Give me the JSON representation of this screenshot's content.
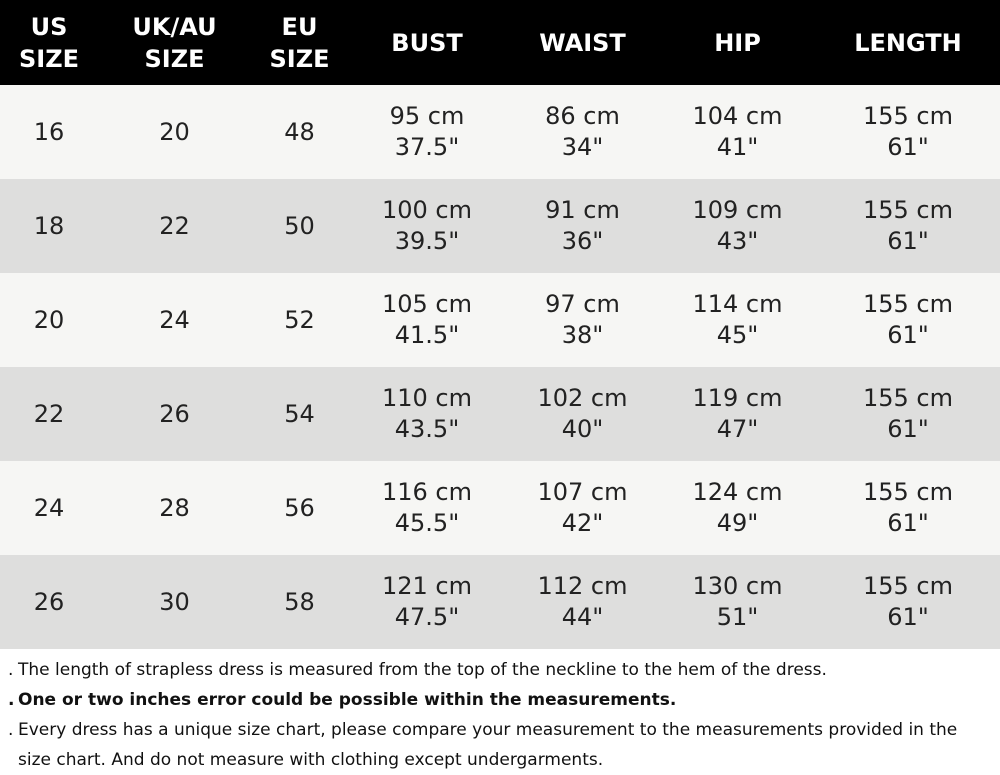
{
  "table": {
    "headers": [
      [
        "US",
        "SIZE"
      ],
      [
        "UK/AU",
        "SIZE"
      ],
      [
        "EU",
        "SIZE"
      ],
      [
        "BUST"
      ],
      [
        "WAIST"
      ],
      [
        "HIP"
      ],
      [
        "LENGTH"
      ]
    ],
    "rows": [
      [
        [
          "16"
        ],
        [
          "20"
        ],
        [
          "48"
        ],
        [
          "95 cm",
          "37.5\""
        ],
        [
          "86 cm",
          "34\""
        ],
        [
          "104 cm",
          "41\""
        ],
        [
          "155 cm",
          "61\""
        ]
      ],
      [
        [
          "18"
        ],
        [
          "22"
        ],
        [
          "50"
        ],
        [
          "100 cm",
          "39.5\""
        ],
        [
          "91 cm",
          "36\""
        ],
        [
          "109 cm",
          "43\""
        ],
        [
          "155 cm",
          "61\""
        ]
      ],
      [
        [
          "20"
        ],
        [
          "24"
        ],
        [
          "52"
        ],
        [
          "105 cm",
          "41.5\""
        ],
        [
          "97 cm",
          "38\""
        ],
        [
          "114 cm",
          "45\""
        ],
        [
          "155 cm",
          "61\""
        ]
      ],
      [
        [
          "22"
        ],
        [
          "26"
        ],
        [
          "54"
        ],
        [
          "110 cm",
          "43.5\""
        ],
        [
          "102 cm",
          "40\""
        ],
        [
          "119 cm",
          "47\""
        ],
        [
          "155 cm",
          "61\""
        ]
      ],
      [
        [
          "24"
        ],
        [
          "28"
        ],
        [
          "56"
        ],
        [
          "116 cm",
          "45.5\""
        ],
        [
          "107 cm",
          "42\""
        ],
        [
          "124 cm",
          "49\""
        ],
        [
          "155 cm",
          "61\""
        ]
      ],
      [
        [
          "26"
        ],
        [
          "30"
        ],
        [
          "58"
        ],
        [
          "121 cm",
          "47.5\""
        ],
        [
          "112 cm",
          "44\""
        ],
        [
          "130 cm",
          "51\""
        ],
        [
          "155 cm",
          "61\""
        ]
      ]
    ]
  },
  "notes": [
    {
      "bullet": ".",
      "text": "The length of strapless dress is measured from the top of the neckline to the hem of the dress.",
      "bold": false
    },
    {
      "bullet": ".",
      "text": "One or two inches error could be possible within the measurements.",
      "bold": true
    },
    {
      "bullet": ".",
      "text": "Every dress has a unique size chart, please compare your measurement to the measurements provided in the size chart. And do not measure with clothing except undergarments.",
      "bold": false
    }
  ],
  "colors": {
    "header_bg": "#000000",
    "header_text": "#ffffff",
    "row_light": "#f6f6f4",
    "row_dark": "#dededd",
    "body_text": "#222222"
  }
}
